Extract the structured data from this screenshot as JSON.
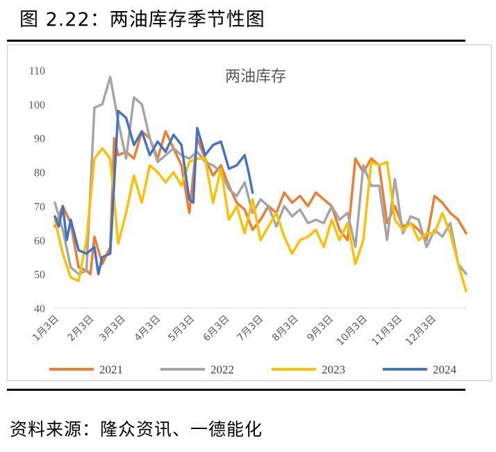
{
  "figure_title": "图 2.22：两油库存季节性图",
  "source": "资料来源：隆众资讯、一德能化",
  "colors": {
    "2021": "#ED7D31",
    "2022": "#A5A5A5",
    "2023": "#FFC000",
    "2024": "#4472C4"
  },
  "chart_data": {
    "type": "line",
    "title": "两油库存",
    "ylim": [
      40,
      110
    ],
    "yticks": [
      40,
      50,
      60,
      70,
      80,
      90,
      100,
      110
    ],
    "xlim": [
      0,
      52
    ],
    "x_tick_labels": [
      "1月3日",
      "2月3日",
      "3月3日",
      "4月3日",
      "5月3日",
      "6月3日",
      "7月3日",
      "8月3日",
      "9月3日",
      "10月3日",
      "11月3日",
      "12月3日"
    ],
    "x_tick_positions": [
      0,
      4.43,
      8.43,
      12.86,
      17.14,
      21.57,
      25.86,
      30.29,
      34.71,
      39.0,
      43.43,
      47.71
    ],
    "xlabel": "",
    "ylabel": "",
    "legend": [
      "2021",
      "2022",
      "2023",
      "2024"
    ],
    "series": [
      {
        "name": "2021",
        "x": [
          0,
          1,
          2,
          3,
          4,
          4.5,
          5,
          6,
          7,
          7.5,
          8,
          9,
          10,
          11,
          12,
          13,
          14,
          15,
          16,
          17,
          18,
          19,
          20,
          21,
          22,
          23,
          24,
          25,
          26,
          27,
          28,
          29,
          30,
          31,
          32,
          33,
          34,
          35,
          36,
          37,
          38,
          39,
          40,
          41,
          42,
          43,
          44,
          45,
          46,
          47,
          48,
          49,
          50,
          51,
          52
        ],
        "values": [
          64,
          70,
          65,
          52,
          51,
          50,
          61,
          53,
          58,
          90,
          85,
          86,
          84,
          92,
          90,
          84,
          92,
          87,
          82,
          68,
          90,
          84,
          79,
          82,
          76,
          71,
          69,
          63,
          66,
          70,
          68,
          74,
          71,
          73,
          70,
          74,
          72,
          70,
          63,
          60,
          84,
          80,
          84,
          82,
          65,
          70,
          64,
          65,
          63,
          60,
          73,
          71,
          68,
          66,
          62
        ]
      },
      {
        "name": "2022",
        "x": [
          0,
          1,
          2,
          3,
          4,
          5,
          6,
          7,
          8,
          9,
          10,
          11,
          12,
          13,
          14,
          15,
          16,
          17,
          18,
          19,
          20,
          21,
          22,
          23,
          24,
          25,
          26,
          27,
          28,
          29,
          30,
          31,
          32,
          33,
          34,
          35,
          36,
          37,
          38,
          39,
          40,
          41,
          42,
          43,
          44,
          45,
          46,
          47,
          48,
          49,
          50,
          51,
          52
        ],
        "values": [
          71,
          63,
          52,
          50,
          51,
          99,
          100,
          108,
          95,
          84,
          102,
          100,
          90,
          83,
          85,
          87,
          85,
          84,
          86,
          83,
          82,
          80,
          75,
          73,
          77,
          68,
          72,
          70,
          64,
          70,
          67,
          69,
          65,
          66,
          65,
          70,
          66,
          68,
          58,
          82,
          76,
          76,
          60,
          78,
          62,
          67,
          66,
          58,
          63,
          61,
          65,
          53,
          50
        ]
      },
      {
        "name": "2023",
        "x": [
          0,
          1,
          2,
          3,
          4,
          5,
          6,
          7,
          8,
          9,
          10,
          11,
          12,
          13,
          14,
          15,
          16,
          17,
          18,
          19,
          20,
          21,
          22,
          23,
          24,
          25,
          26,
          27,
          28,
          29,
          30,
          31,
          32,
          33,
          34,
          35,
          36,
          37,
          38,
          39,
          40,
          41,
          42,
          43,
          44,
          45,
          46,
          47,
          48,
          49,
          50,
          51,
          52
        ],
        "values": [
          66,
          56,
          49,
          48,
          60,
          84,
          87,
          84,
          59,
          68,
          79,
          71,
          82,
          80,
          77,
          80,
          76,
          83,
          84,
          84,
          71,
          81,
          66,
          70,
          62,
          72,
          60,
          64,
          68,
          61,
          56,
          60,
          61,
          63,
          58,
          66,
          60,
          65,
          53,
          60,
          83,
          82,
          83,
          66,
          63,
          65,
          60,
          62,
          62,
          68,
          62,
          53,
          45
        ]
      },
      {
        "name": "2024",
        "x": [
          0,
          0.5,
          1,
          1.5,
          2,
          3,
          4,
          5,
          5.5,
          6,
          7,
          8,
          9,
          10,
          11,
          12,
          13,
          14,
          15,
          16,
          17,
          17.5,
          18,
          19,
          20,
          21,
          22,
          23,
          24,
          24.5,
          25
        ],
        "values": [
          67,
          64,
          70,
          60,
          66,
          57,
          56,
          58,
          50,
          55,
          56,
          98,
          96,
          88,
          92,
          85,
          89,
          86,
          91,
          88,
          72,
          71,
          93,
          85,
          88,
          89,
          81,
          82,
          85,
          80,
          74
        ]
      }
    ]
  }
}
